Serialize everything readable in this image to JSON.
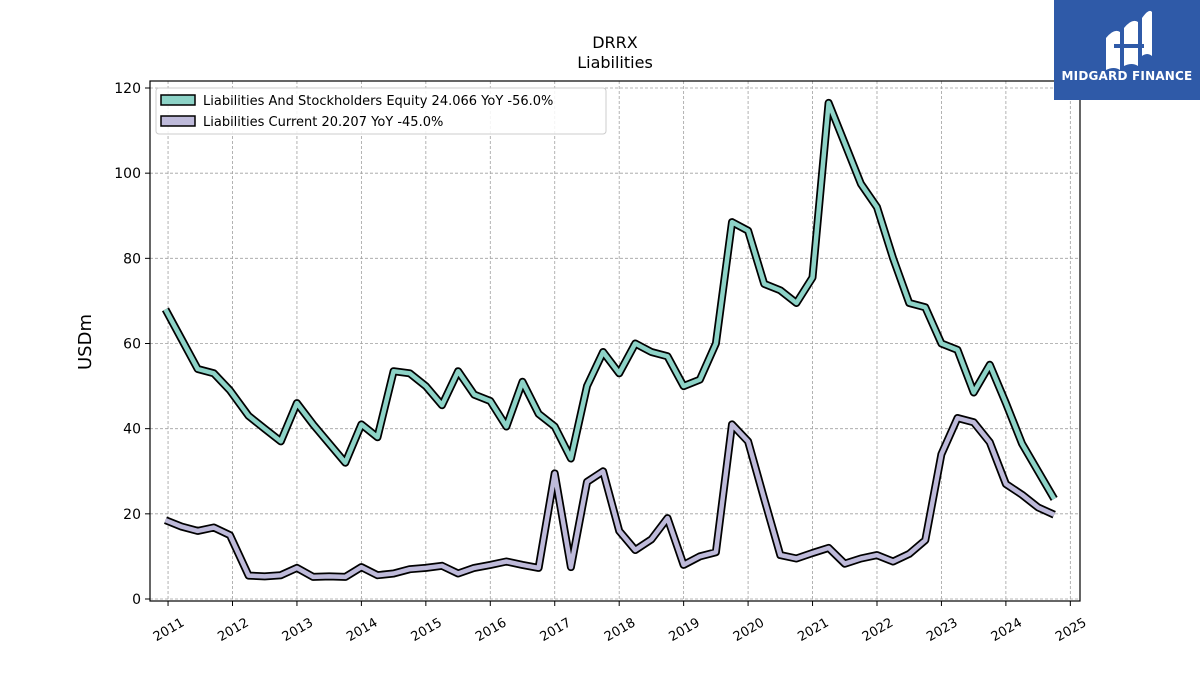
{
  "chart_data": {
    "type": "line",
    "title": "DRRX",
    "subtitle": "Liabilities",
    "ylabel": "USDm",
    "xlabel": "",
    "ylim": [
      0,
      120
    ],
    "xlim": [
      2010.72,
      2025.15
    ],
    "yticks": [
      0,
      20,
      40,
      60,
      80,
      100,
      120
    ],
    "xticks": [
      2011,
      2012,
      2013,
      2014,
      2015,
      2016,
      2017,
      2018,
      2019,
      2020,
      2021,
      2022,
      2023,
      2024,
      2025
    ],
    "grid": true,
    "legend_position": "top-left",
    "x": [
      2010.96,
      2011.21,
      2011.46,
      2011.71,
      2011.96,
      2012.25,
      2012.5,
      2012.75,
      2013.0,
      2013.25,
      2013.5,
      2013.75,
      2014.0,
      2014.25,
      2014.5,
      2014.75,
      2015.0,
      2015.25,
      2015.5,
      2015.75,
      2016.0,
      2016.25,
      2016.5,
      2016.75,
      2017.0,
      2017.25,
      2017.5,
      2017.75,
      2018.0,
      2018.25,
      2018.5,
      2018.75,
      2019.0,
      2019.25,
      2019.5,
      2019.75,
      2020.0,
      2020.25,
      2020.5,
      2020.75,
      2021.0,
      2021.25,
      2021.5,
      2021.75,
      2022.0,
      2022.25,
      2022.5,
      2022.75,
      2023.0,
      2023.25,
      2023.5,
      2023.75,
      2024.0,
      2024.25,
      2024.5,
      2024.75
    ],
    "series": [
      {
        "name": "Liabilities And Stockholders Equity",
        "label": "Liabilities And Stockholders Equity  24.066 YoY -56.0%",
        "color": "#8dd3c7",
        "values": [
          68,
          61,
          54,
          53,
          49,
          43,
          40,
          37,
          46,
          41,
          36.5,
          32,
          41,
          38,
          53.5,
          53,
          50,
          45.5,
          53.5,
          48,
          46.5,
          40.5,
          51,
          43.5,
          40.5,
          33,
          50,
          58,
          53,
          60,
          58,
          57,
          50,
          51.5,
          60,
          88.5,
          86.5,
          74,
          72.5,
          69.5,
          75.5,
          116.5,
          107,
          97.5,
          92,
          80,
          69.5,
          68.5,
          60,
          58.5,
          48.5,
          55,
          46,
          36.5,
          30,
          23.5
        ]
      },
      {
        "name": "Liabilities Current",
        "label": "Liabilities Current  20.207 YoY -45.0%",
        "color": "#bebada",
        "values": [
          18.5,
          17,
          16,
          16.8,
          15,
          5.5,
          5.3,
          5.6,
          7.3,
          5.2,
          5.3,
          5.2,
          7.5,
          5.6,
          6,
          7,
          7.3,
          7.8,
          6,
          7.3,
          8,
          8.8,
          8,
          7.3,
          29.5,
          7.5,
          27.5,
          30,
          16,
          11.5,
          14,
          19,
          8,
          10,
          11,
          41,
          37,
          23.5,
          10.3,
          9.5,
          10.8,
          12,
          8.3,
          9.5,
          10.3,
          8.8,
          10.6,
          13.8,
          34,
          42.5,
          41.5,
          36.8,
          27,
          24.5,
          21.5,
          19.8
        ]
      }
    ]
  },
  "logo": {
    "text": "MIDGARD FINANCE",
    "color": "#2f5aa8"
  }
}
